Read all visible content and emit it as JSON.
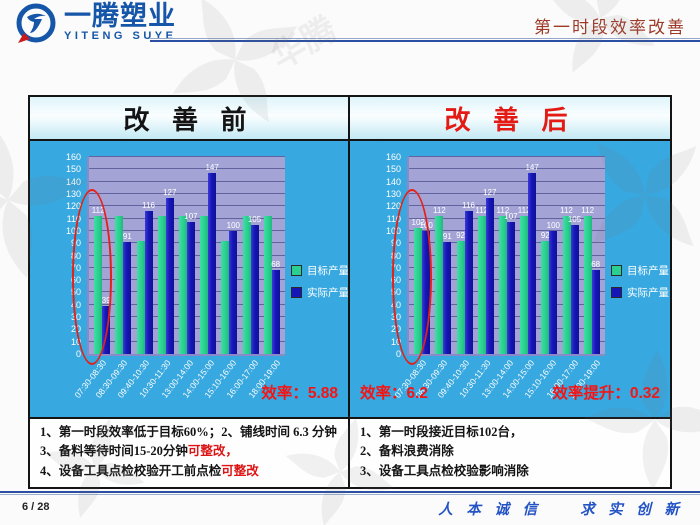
{
  "header": {
    "logo_cn": "一腾塑业",
    "logo_en": "YITENG SUYE",
    "title": "第一时段效率改善"
  },
  "watermark_text": "华腾",
  "colors": {
    "target_bar": "#2BD091",
    "actual_bar": "#1616B6",
    "chart_background": "#38A8E0",
    "plot_background": "#A3A3D6",
    "highlight_red": "#F51414",
    "header_title": "#9E3A28",
    "brand_blue": "#1656A8"
  },
  "columns": [
    {
      "panel_title": "改 善 前",
      "notes": [
        [
          {
            "t": "1、第一时段效率低于目标60%；2、铺线时间 6.3 分钟"
          }
        ],
        [
          {
            "t": "3、备料等待时间15-20分钟"
          },
          {
            "t": "可整改，",
            "red": true
          }
        ],
        [
          {
            "t": "4、设备工具点检校验开工前点检"
          },
          {
            "t": "可整改",
            "red": true
          }
        ]
      ]
    },
    {
      "panel_title": "改 善 后",
      "notes": [
        [
          {
            "t": "1、第一时段接近目标102台，"
          }
        ],
        [
          {
            "t": "2、备料浪费消除"
          }
        ],
        [
          {
            "t": "3、设备工具点检校验影响消除"
          }
        ]
      ]
    }
  ],
  "chart_data": [
    {
      "type": "bar",
      "title": "改善前",
      "categories": [
        "07:30-08:30",
        "08:30-09:30",
        "09:40-10:30",
        "10:30-11:30",
        "13:00-14:00",
        "14:00-15:00",
        "15:10-16:00",
        "16:00-17:00",
        "18:00-19:00"
      ],
      "series": [
        {
          "name": "目标产量",
          "color": "#2BD091",
          "values": [
            112,
            112,
            92,
            112,
            112,
            112,
            92,
            112,
            112
          ],
          "labels": [
            "112",
            "",
            "",
            "",
            "",
            "",
            "",
            "",
            ""
          ]
        },
        {
          "name": "实际产量",
          "color": "#1616B6",
          "values": [
            39,
            91,
            116,
            127,
            107,
            147,
            100,
            105,
            68
          ],
          "labels": [
            "39",
            "91",
            "116",
            "127",
            "107",
            "147",
            "100",
            "105",
            "68"
          ]
        }
      ],
      "ylim": [
        0,
        160
      ],
      "ytick_step": 10,
      "grid": true,
      "legend_position": "right",
      "efficiency": [
        "效率：5.88"
      ]
    },
    {
      "type": "bar",
      "title": "改善后",
      "categories": [
        "07:30-08:30",
        "08:30-09:30",
        "09:40-10:30",
        "10:30-11:30",
        "13:00-14:00",
        "14:00-15:00",
        "15:10-16:00",
        "16:00-17:00",
        "18:00-19:00"
      ],
      "series": [
        {
          "name": "目标产量",
          "color": "#2BD091",
          "values": [
            102,
            112,
            92,
            112,
            112,
            112,
            92,
            112,
            112
          ],
          "labels": [
            "102",
            "112",
            "92",
            "112",
            "112",
            "112",
            "92",
            "112",
            "112"
          ]
        },
        {
          "name": "实际产量",
          "color": "#1616B6",
          "values": [
            100,
            91,
            116,
            127,
            107,
            147,
            100,
            105,
            68
          ],
          "labels": [
            "100",
            "91",
            "116",
            "127",
            "107",
            "147",
            "100",
            "105",
            "68"
          ]
        }
      ],
      "ylim": [
        0,
        160
      ],
      "ytick_step": 10,
      "grid": true,
      "legend_position": "right",
      "efficiency": [
        "效率：6.2",
        "效率提升：0.32"
      ]
    }
  ],
  "footer": {
    "page": "6 / 28",
    "slogan_left": "人 本 诚 信",
    "slogan_right": "求 实 创 新"
  }
}
